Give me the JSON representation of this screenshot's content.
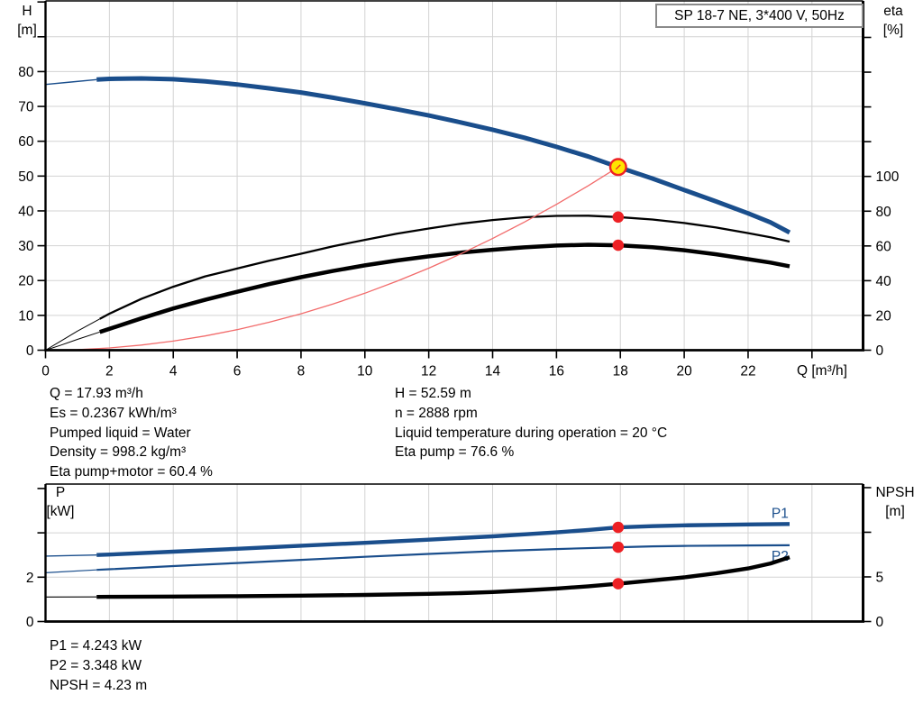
{
  "title_box": {
    "label": "SP 18-7 NE, 3*400 V, 50Hz"
  },
  "duty_info": {
    "left": [
      "Q = 17.93 m³/h",
      "Es = 0.2367 kWh/m³",
      "Pumped liquid = Water",
      "Density = 998.2 kg/m³",
      "Eta pump+motor = 60.4 %"
    ],
    "right": [
      "H = 52.59 m",
      "n = 2888 rpm",
      "Liquid temperature during operation = 20 °C",
      "Eta pump = 76.6 %"
    ]
  },
  "power_info": [
    "P1 = 4.243 kW",
    "P2 = 3.348 kW",
    "NPSH = 4.23 m"
  ],
  "colors": {
    "curve_blue": "#1a4e8c",
    "curve_red": "#ed2024",
    "system_red": "#f26b6b",
    "duty_yellow": "#ffe400",
    "grid": "#d3d3d3",
    "axis": "#000000"
  },
  "chart_data": [
    {
      "type": "line",
      "title": "SP 18-7 NE, 3*400 V, 50Hz",
      "x_axis": {
        "label": "Q [m³/h]",
        "range": [
          0,
          25.6
        ],
        "grid": [
          2,
          4,
          6,
          8,
          10,
          12,
          14,
          16,
          18,
          20,
          22,
          24
        ],
        "ticks": [
          [
            0,
            "0"
          ],
          [
            2,
            "2"
          ],
          [
            4,
            "4"
          ],
          [
            6,
            "6"
          ],
          [
            8,
            "8"
          ],
          [
            10,
            "10"
          ],
          [
            12,
            "12"
          ],
          [
            14,
            "14"
          ],
          [
            16,
            "16"
          ],
          [
            18,
            "18"
          ],
          [
            20,
            "20"
          ],
          [
            22,
            "22"
          ],
          [
            24,
            ""
          ]
        ]
      },
      "left_axis": {
        "title_lines": [
          "H",
          "[m]"
        ],
        "range": [
          0,
          100.3
        ],
        "grid": [
          10,
          20,
          30,
          40,
          50,
          60,
          70,
          80,
          90
        ],
        "ticks": [
          [
            0,
            "0"
          ],
          [
            10,
            "10"
          ],
          [
            20,
            "20"
          ],
          [
            30,
            "30"
          ],
          [
            40,
            "40"
          ],
          [
            50,
            "50"
          ],
          [
            60,
            "60"
          ],
          [
            70,
            "70"
          ],
          [
            80,
            "80"
          ],
          [
            90,
            ""
          ],
          [
            100,
            ""
          ]
        ]
      },
      "right_axis": {
        "title_lines": [
          "eta",
          "[%]"
        ],
        "range": [
          0,
          201
        ],
        "grid": [],
        "ticks": [
          [
            0,
            "0"
          ],
          [
            20,
            "20"
          ],
          [
            40,
            "40"
          ],
          [
            60,
            "60"
          ],
          [
            80,
            "80"
          ],
          [
            100,
            "100"
          ],
          [
            120,
            ""
          ],
          [
            140,
            ""
          ],
          [
            160,
            ""
          ],
          [
            180,
            ""
          ]
        ]
      },
      "series": [
        {
          "name": "head-curve",
          "axis": "left",
          "color": "curve_blue",
          "width": 5,
          "thin_until": 1.6,
          "thin_width": 1.4,
          "points": [
            [
              0,
              76.3
            ],
            [
              0.8,
              77.0
            ],
            [
              1.6,
              77.7
            ],
            [
              2,
              77.9
            ],
            [
              3,
              78.05
            ],
            [
              4,
              77.8
            ],
            [
              5,
              77.2
            ],
            [
              6,
              76.3
            ],
            [
              7,
              75.2
            ],
            [
              8,
              74.0
            ],
            [
              9,
              72.5
            ],
            [
              10,
              70.9
            ],
            [
              11,
              69.2
            ],
            [
              12,
              67.4
            ],
            [
              13,
              65.4
            ],
            [
              14,
              63.3
            ],
            [
              15,
              61.0
            ],
            [
              16,
              58.4
            ],
            [
              17,
              55.6
            ],
            [
              17.93,
              52.59
            ],
            [
              19,
              49.3
            ],
            [
              20,
              46.0
            ],
            [
              21,
              42.7
            ],
            [
              22,
              39.3
            ],
            [
              22.7,
              36.7
            ],
            [
              23.3,
              33.8
            ]
          ]
        },
        {
          "name": "eta-pump-curve",
          "axis": "right",
          "color": "axis",
          "width": 2.3,
          "thin_until": 1.7,
          "thin_width": 1,
          "points": [
            [
              0,
              0
            ],
            [
              0.5,
              5.5
            ],
            [
              1,
              11
            ],
            [
              1.7,
              18
            ],
            [
              2,
              21
            ],
            [
              3,
              29.5
            ],
            [
              4,
              36.5
            ],
            [
              5,
              42.5
            ],
            [
              6,
              47
            ],
            [
              7,
              51.5
            ],
            [
              8,
              55.5
            ],
            [
              9,
              59.8
            ],
            [
              10,
              63.5
            ],
            [
              11,
              67
            ],
            [
              12,
              70
            ],
            [
              13,
              72.8
            ],
            [
              14,
              74.9
            ],
            [
              15,
              76.5
            ],
            [
              16,
              77.3
            ],
            [
              17,
              77.4
            ],
            [
              17.93,
              76.6
            ],
            [
              19,
              75.2
            ],
            [
              20,
              73.2
            ],
            [
              21,
              70.6
            ],
            [
              22,
              67.4
            ],
            [
              22.7,
              65
            ],
            [
              23.3,
              62.5
            ]
          ]
        },
        {
          "name": "eta-pump-motor-curve",
          "axis": "right",
          "color": "axis",
          "width": 4.5,
          "thin_until": 1.7,
          "thin_width": 1,
          "points": [
            [
              0,
              0
            ],
            [
              0.5,
              3
            ],
            [
              1,
              6.2
            ],
            [
              1.7,
              10.5
            ],
            [
              2,
              12.3
            ],
            [
              3,
              18.3
            ],
            [
              4,
              24
            ],
            [
              5,
              29
            ],
            [
              6,
              33.6
            ],
            [
              7,
              38
            ],
            [
              8,
              42
            ],
            [
              9,
              45.6
            ],
            [
              10,
              48.8
            ],
            [
              11,
              51.6
            ],
            [
              12,
              54
            ],
            [
              13,
              56.1
            ],
            [
              14,
              57.8
            ],
            [
              15,
              59.2
            ],
            [
              16,
              60.2
            ],
            [
              17,
              60.7
            ],
            [
              17.93,
              60.4
            ],
            [
              19,
              59.3
            ],
            [
              20,
              57.5
            ],
            [
              21,
              55.2
            ],
            [
              22,
              52.4
            ],
            [
              22.7,
              50.4
            ],
            [
              23.3,
              48.3
            ]
          ]
        },
        {
          "name": "system-curve",
          "axis": "left",
          "color": "system_red",
          "width": 1.3,
          "points": [
            [
              0,
              0
            ],
            [
              1,
              0.16
            ],
            [
              2,
              0.65
            ],
            [
              3,
              1.47
            ],
            [
              4,
              2.62
            ],
            [
              5,
              4.09
            ],
            [
              6,
              5.89
            ],
            [
              7,
              8.02
            ],
            [
              8,
              10.47
            ],
            [
              9,
              13.25
            ],
            [
              10,
              16.36
            ],
            [
              11,
              19.79
            ],
            [
              12,
              23.55
            ],
            [
              13,
              27.64
            ],
            [
              14,
              32.06
            ],
            [
              15,
              36.8
            ],
            [
              16,
              41.87
            ],
            [
              17,
              47.27
            ],
            [
              17.93,
              52.59
            ]
          ]
        }
      ],
      "markers": [
        {
          "name": "duty-point",
          "q": 17.93,
          "v": 52.59,
          "axis": "left",
          "style": "duty"
        },
        {
          "name": "eta-pump-point",
          "q": 17.93,
          "v": 76.6,
          "axis": "right",
          "style": "dot"
        },
        {
          "name": "eta-pump-motor-point",
          "q": 17.93,
          "v": 60.4,
          "axis": "right",
          "style": "dot"
        }
      ]
    },
    {
      "type": "line",
      "title": "",
      "x_axis": {
        "label": "",
        "range": [
          0,
          25.6
        ],
        "grid": [
          2,
          4,
          6,
          8,
          10,
          12,
          14,
          16,
          18,
          20,
          22,
          24
        ],
        "ticks": []
      },
      "left_axis": {
        "title_lines": [
          "P",
          "[kW]"
        ],
        "range": [
          0,
          6.2
        ],
        "grid": [
          2,
          4
        ],
        "ticks": [
          [
            0,
            "0"
          ],
          [
            2,
            "2"
          ],
          [
            4,
            ""
          ],
          [
            6,
            ""
          ]
        ]
      },
      "right_axis": {
        "title_lines": [
          "NPSH",
          "[m]"
        ],
        "range": [
          0,
          15.4
        ],
        "grid": [],
        "ticks": [
          [
            0,
            "0"
          ],
          [
            5,
            "5"
          ],
          [
            10,
            ""
          ],
          [
            15,
            ""
          ]
        ]
      },
      "series": [
        {
          "name": "p1-curve",
          "axis": "left",
          "color": "curve_blue",
          "width": 4.4,
          "thin_until": 1.6,
          "thin_width": 1.4,
          "label": "P1",
          "label_at": [
            23.0,
            4.87
          ],
          "points": [
            [
              0,
              2.95
            ],
            [
              1.6,
              3.0
            ],
            [
              2,
              3.02
            ],
            [
              4,
              3.15
            ],
            [
              6,
              3.28
            ],
            [
              8,
              3.42
            ],
            [
              10,
              3.55
            ],
            [
              12,
              3.69
            ],
            [
              14,
              3.84
            ],
            [
              16,
              4.02
            ],
            [
              17,
              4.13
            ],
            [
              17.93,
              4.243
            ],
            [
              19,
              4.3
            ],
            [
              20,
              4.34
            ],
            [
              21,
              4.36
            ],
            [
              22,
              4.38
            ],
            [
              23.3,
              4.4
            ]
          ]
        },
        {
          "name": "p2-curve",
          "axis": "left",
          "color": "curve_blue",
          "width": 2.2,
          "thin_until": 1.6,
          "thin_width": 1.2,
          "label": "P2",
          "label_at": [
            23.0,
            2.95
          ],
          "points": [
            [
              0,
              2.2
            ],
            [
              1.6,
              2.33
            ],
            [
              2,
              2.36
            ],
            [
              4,
              2.5
            ],
            [
              6,
              2.64
            ],
            [
              8,
              2.78
            ],
            [
              10,
              2.92
            ],
            [
              12,
              3.05
            ],
            [
              14,
              3.17
            ],
            [
              16,
              3.27
            ],
            [
              17.93,
              3.348
            ],
            [
              19,
              3.39
            ],
            [
              20,
              3.41
            ],
            [
              22,
              3.43
            ],
            [
              23.3,
              3.44
            ]
          ]
        },
        {
          "name": "npsh-curve",
          "axis": "right",
          "color": "axis",
          "width": 4.4,
          "thin_until": 1.6,
          "thin_width": 1.2,
          "points": [
            [
              0,
              2.75
            ],
            [
              1.6,
              2.76
            ],
            [
              2,
              2.77
            ],
            [
              4,
              2.8
            ],
            [
              6,
              2.84
            ],
            [
              8,
              2.9
            ],
            [
              10,
              2.98
            ],
            [
              12,
              3.1
            ],
            [
              13,
              3.18
            ],
            [
              14,
              3.3
            ],
            [
              15,
              3.48
            ],
            [
              16,
              3.7
            ],
            [
              17,
              3.95
            ],
            [
              17.93,
              4.23
            ],
            [
              19,
              4.6
            ],
            [
              20,
              4.95
            ],
            [
              21,
              5.4
            ],
            [
              22,
              5.95
            ],
            [
              22.7,
              6.5
            ],
            [
              23.3,
              7.2
            ]
          ]
        }
      ],
      "markers": [
        {
          "name": "p1-point",
          "q": 17.93,
          "v": 4.243,
          "axis": "left",
          "style": "dot"
        },
        {
          "name": "p2-point",
          "q": 17.93,
          "v": 3.348,
          "axis": "left",
          "style": "dot"
        },
        {
          "name": "npsh-point",
          "q": 17.93,
          "v": 4.23,
          "axis": "right",
          "style": "dot"
        }
      ]
    }
  ]
}
